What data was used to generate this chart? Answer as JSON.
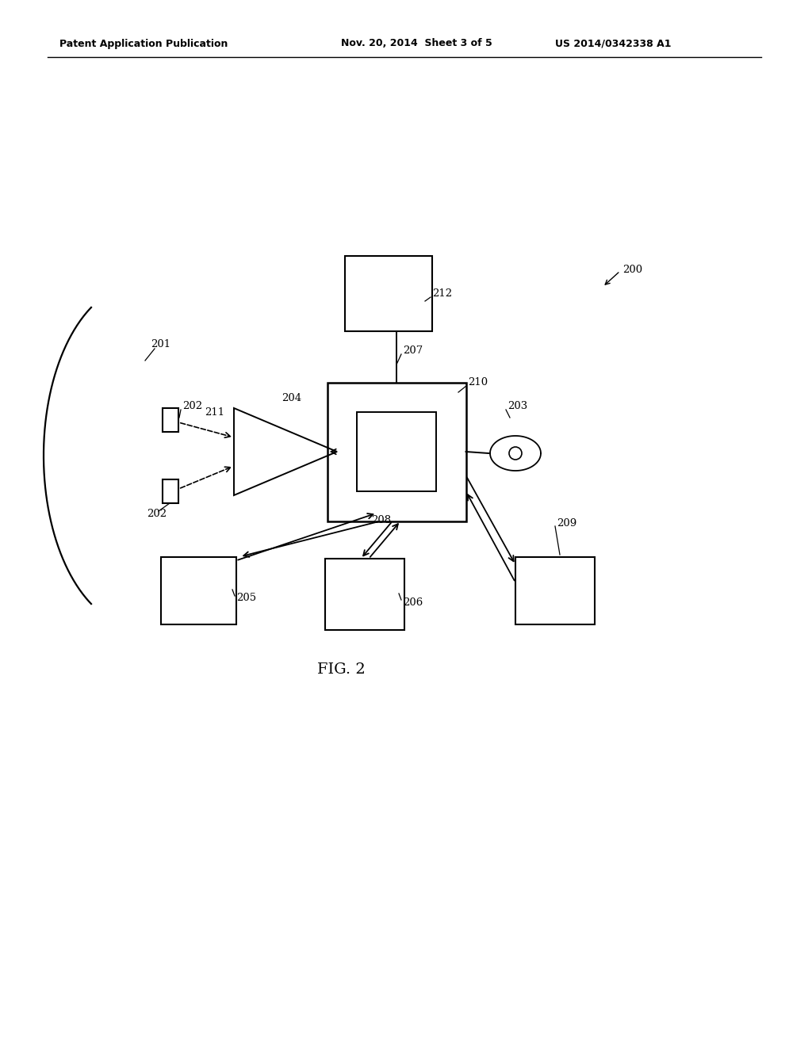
{
  "header_left": "Patent Application Publication",
  "header_center": "Nov. 20, 2014  Sheet 3 of 5",
  "header_right": "US 2014/0342338 A1",
  "fig_label": "FIG. 2",
  "ref_200": "200",
  "ref_201": "201",
  "ref_202a": "202",
  "ref_202b": "202",
  "ref_203": "203",
  "ref_204": "204",
  "ref_205": "205",
  "ref_206": "206",
  "ref_207": "207",
  "ref_208": "208",
  "ref_209": "209",
  "ref_210": "210",
  "ref_211": "211",
  "ref_212": "212",
  "bg_color": "#ffffff",
  "line_color": "#000000"
}
